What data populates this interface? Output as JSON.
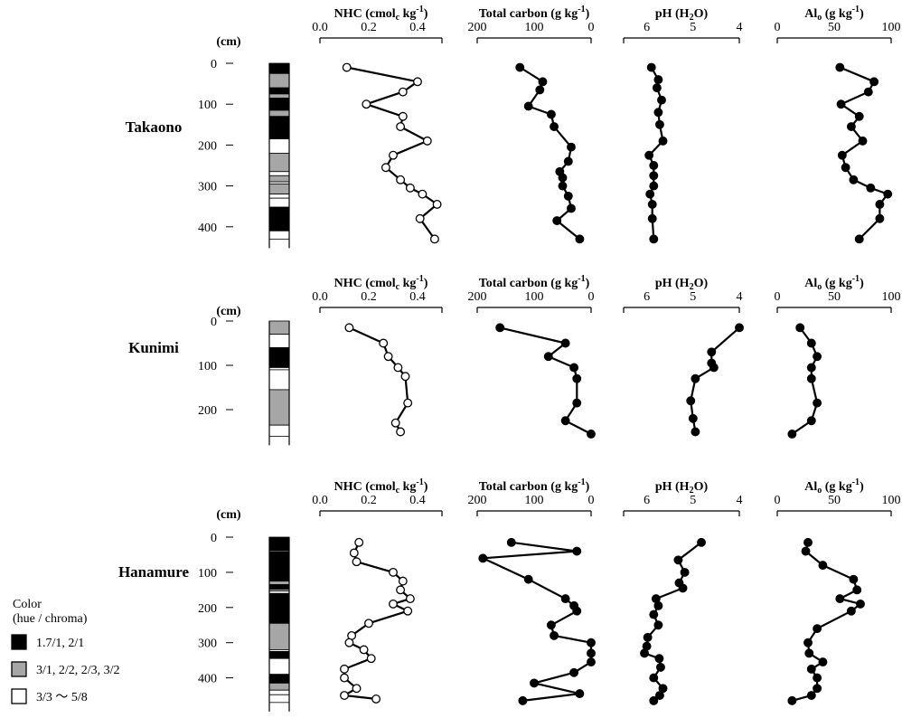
{
  "depth_unit": "(cm)",
  "panel_titles": {
    "nhc": {
      "main": "NHC (cmol",
      "sub": "c",
      "tail": " kg",
      "sup": "-1",
      "end": ")"
    },
    "tc": {
      "main": "Total carbon (g kg",
      "sup": "-1",
      "end": ")"
    },
    "ph": {
      "main": "pH (H",
      "sub": "2",
      "tail": "O)"
    },
    "alo": {
      "main": "Al",
      "sub": "o",
      "tail": " (g kg",
      "sup": "-1",
      "end": ")"
    }
  },
  "legend": {
    "title_line1": "Color",
    "title_line2": "(hue / chroma)",
    "items": [
      {
        "label": "1.7/1,  2/1",
        "color": "#000000"
      },
      {
        "label": "3/1,  2/2,  2/3,  3/2",
        "color": "#a6a6a6"
      },
      {
        "label": "3/3 ～ 5/8",
        "color": "#ffffff"
      }
    ]
  },
  "colors": {
    "dark": "#000000",
    "gray": "#a6a6a6",
    "light": "#ffffff"
  },
  "chart_data": [
    {
      "site": "Takaono",
      "type": "line",
      "y_ticks": [
        0,
        100,
        200,
        300,
        400
      ],
      "ylim": [
        0,
        430
      ],
      "color_column": [
        {
          "from": 0,
          "to": 25,
          "color": "dark"
        },
        {
          "from": 25,
          "to": 60,
          "color": "gray"
        },
        {
          "from": 60,
          "to": 75,
          "color": "dark"
        },
        {
          "from": 75,
          "to": 85,
          "color": "gray"
        },
        {
          "from": 85,
          "to": 115,
          "color": "dark"
        },
        {
          "from": 115,
          "to": 130,
          "color": "gray"
        },
        {
          "from": 130,
          "to": 185,
          "color": "dark"
        },
        {
          "from": 185,
          "to": 220,
          "color": "light"
        },
        {
          "from": 220,
          "to": 265,
          "color": "gray"
        },
        {
          "from": 265,
          "to": 275,
          "color": "light"
        },
        {
          "from": 275,
          "to": 290,
          "color": "gray"
        },
        {
          "from": 290,
          "to": 295,
          "color": "light"
        },
        {
          "from": 295,
          "to": 320,
          "color": "gray"
        },
        {
          "from": 320,
          "to": 330,
          "color": "light"
        },
        {
          "from": 330,
          "to": 352,
          "color": "light"
        },
        {
          "from": 352,
          "to": 410,
          "color": "dark"
        },
        {
          "from": 410,
          "to": 430,
          "color": "light"
        }
      ],
      "series": [
        {
          "key": "nhc",
          "xlim": [
            0,
            0.5
          ],
          "x_ticks": [
            0.0,
            0.2,
            0.4
          ],
          "tick_labels": [
            "0.0",
            "0.2",
            "0.4"
          ],
          "reversed": false,
          "marker": "open",
          "depth": [
            10,
            45,
            70,
            100,
            130,
            155,
            190,
            225,
            255,
            285,
            305,
            320,
            345,
            380,
            430
          ],
          "values": [
            0.11,
            0.4,
            0.34,
            0.19,
            0.34,
            0.33,
            0.44,
            0.3,
            0.27,
            0.33,
            0.37,
            0.42,
            0.48,
            0.41,
            0.47
          ]
        },
        {
          "key": "tc",
          "xlim": [
            200,
            0
          ],
          "x_ticks": [
            200,
            100,
            0
          ],
          "tick_labels": [
            "200",
            "100",
            "0"
          ],
          "reversed": true,
          "marker": "filled",
          "depth": [
            10,
            45,
            65,
            105,
            125,
            155,
            205,
            240,
            265,
            280,
            300,
            325,
            355,
            385,
            430
          ],
          "values": [
            125,
            85,
            90,
            110,
            70,
            65,
            35,
            40,
            55,
            50,
            50,
            40,
            35,
            60,
            20
          ]
        },
        {
          "key": "ph",
          "xlim": [
            6.5,
            4
          ],
          "x_ticks": [
            6,
            5,
            4
          ],
          "tick_labels": [
            "6",
            "5",
            "4"
          ],
          "reversed": true,
          "marker": "filled",
          "depth": [
            10,
            40,
            60,
            90,
            120,
            150,
            190,
            225,
            250,
            275,
            300,
            320,
            345,
            380,
            430
          ],
          "values": [
            5.9,
            5.75,
            5.78,
            5.68,
            5.75,
            5.72,
            5.65,
            5.95,
            5.85,
            5.85,
            5.85,
            5.93,
            5.88,
            5.88,
            5.85
          ]
        },
        {
          "key": "alo",
          "xlim": [
            0,
            100
          ],
          "x_ticks": [
            0,
            50,
            100
          ],
          "tick_labels": [
            "0",
            "50",
            "100"
          ],
          "reversed": false,
          "marker": "filled",
          "depth": [
            10,
            45,
            70,
            100,
            130,
            155,
            190,
            225,
            255,
            285,
            305,
            320,
            345,
            380,
            430
          ],
          "values": [
            55,
            85,
            80,
            56,
            72,
            65,
            75,
            57,
            60,
            67,
            82,
            97,
            90,
            90,
            72
          ]
        }
      ]
    },
    {
      "site": "Kunimi",
      "type": "line",
      "y_ticks": [
        0,
        100,
        200
      ],
      "ylim": [
        0,
        260
      ],
      "color_column": [
        {
          "from": 0,
          "to": 30,
          "color": "gray"
        },
        {
          "from": 30,
          "to": 60,
          "color": "light"
        },
        {
          "from": 60,
          "to": 105,
          "color": "dark"
        },
        {
          "from": 105,
          "to": 110,
          "color": "light"
        },
        {
          "from": 110,
          "to": 155,
          "color": "light"
        },
        {
          "from": 155,
          "to": 235,
          "color": "gray"
        },
        {
          "from": 235,
          "to": 260,
          "color": "light"
        }
      ],
      "series": [
        {
          "key": "nhc",
          "xlim": [
            0,
            0.5
          ],
          "x_ticks": [
            0.0,
            0.2,
            0.4
          ],
          "tick_labels": [
            "0.0",
            "0.2",
            "0.4"
          ],
          "reversed": false,
          "marker": "open",
          "depth": [
            15,
            50,
            80,
            105,
            125,
            185,
            230,
            250
          ],
          "values": [
            0.12,
            0.26,
            0.28,
            0.32,
            0.35,
            0.36,
            0.31,
            0.33
          ]
        },
        {
          "key": "tc",
          "xlim": [
            200,
            0
          ],
          "x_ticks": [
            200,
            100,
            0
          ],
          "tick_labels": [
            "200",
            "100",
            "0"
          ],
          "reversed": true,
          "marker": "filled",
          "depth": [
            15,
            50,
            80,
            105,
            130,
            185,
            225,
            255
          ],
          "values": [
            160,
            45,
            75,
            30,
            25,
            25,
            45,
            0
          ]
        },
        {
          "key": "ph",
          "xlim": [
            6.5,
            4
          ],
          "x_ticks": [
            6,
            5,
            4
          ],
          "tick_labels": [
            "6",
            "5",
            "4"
          ],
          "reversed": true,
          "marker": "filled",
          "depth": [
            15,
            70,
            95,
            105,
            130,
            180,
            220,
            250
          ],
          "values": [
            4.0,
            4.6,
            4.6,
            4.55,
            4.95,
            5.05,
            5.0,
            4.95
          ]
        },
        {
          "key": "alo",
          "xlim": [
            0,
            100
          ],
          "x_ticks": [
            0,
            50,
            100
          ],
          "tick_labels": [
            "0",
            "50",
            "100"
          ],
          "reversed": false,
          "marker": "filled",
          "depth": [
            15,
            50,
            80,
            105,
            130,
            185,
            225,
            255
          ],
          "values": [
            20,
            30,
            35,
            30,
            30,
            35,
            30,
            13
          ]
        }
      ]
    },
    {
      "site": "Hanamure",
      "type": "line",
      "y_ticks": [
        0,
        100,
        200,
        300,
        400
      ],
      "ylim": [
        0,
        470
      ],
      "color_column": [
        {
          "from": 0,
          "to": 38,
          "color": "dark"
        },
        {
          "from": 38,
          "to": 41,
          "color": "light"
        },
        {
          "from": 41,
          "to": 125,
          "color": "dark"
        },
        {
          "from": 125,
          "to": 135,
          "color": "gray"
        },
        {
          "from": 135,
          "to": 148,
          "color": "dark"
        },
        {
          "from": 148,
          "to": 153,
          "color": "gray"
        },
        {
          "from": 153,
          "to": 160,
          "color": "light"
        },
        {
          "from": 160,
          "to": 245,
          "color": "dark"
        },
        {
          "from": 245,
          "to": 320,
          "color": "gray"
        },
        {
          "from": 320,
          "to": 325,
          "color": "light"
        },
        {
          "from": 325,
          "to": 345,
          "color": "dark"
        },
        {
          "from": 345,
          "to": 390,
          "color": "light"
        },
        {
          "from": 390,
          "to": 415,
          "color": "dark"
        },
        {
          "from": 415,
          "to": 435,
          "color": "gray"
        },
        {
          "from": 435,
          "to": 448,
          "color": "light"
        },
        {
          "from": 448,
          "to": 470,
          "color": "light"
        }
      ],
      "series": [
        {
          "key": "nhc",
          "xlim": [
            0,
            0.5
          ],
          "x_ticks": [
            0.0,
            0.2,
            0.4
          ],
          "tick_labels": [
            "0.0",
            "0.2",
            "0.4"
          ],
          "reversed": false,
          "marker": "open",
          "depth": [
            15,
            45,
            70,
            100,
            125,
            150,
            175,
            190,
            210,
            245,
            280,
            300,
            320,
            345,
            375,
            400,
            430,
            450,
            460
          ],
          "values": [
            0.16,
            0.14,
            0.15,
            0.3,
            0.34,
            0.33,
            0.37,
            0.3,
            0.36,
            0.2,
            0.13,
            0.12,
            0.18,
            0.21,
            0.1,
            0.1,
            0.15,
            0.1,
            0.23
          ]
        },
        {
          "key": "tc",
          "xlim": [
            200,
            0
          ],
          "x_ticks": [
            200,
            100,
            0
          ],
          "tick_labels": [
            "200",
            "100",
            "0"
          ],
          "reversed": true,
          "marker": "filled",
          "depth": [
            15,
            40,
            60,
            120,
            175,
            195,
            210,
            250,
            280,
            300,
            330,
            355,
            385,
            415,
            445,
            465
          ],
          "values": [
            140,
            25,
            190,
            110,
            45,
            30,
            25,
            70,
            65,
            0,
            0,
            0,
            30,
            100,
            20,
            120
          ]
        },
        {
          "key": "ph",
          "xlim": [
            6.5,
            4
          ],
          "x_ticks": [
            6,
            5,
            4
          ],
          "tick_labels": [
            "6",
            "5",
            "4"
          ],
          "reversed": true,
          "marker": "filled",
          "depth": [
            15,
            65,
            100,
            130,
            145,
            175,
            195,
            220,
            250,
            285,
            310,
            330,
            345,
            370,
            400,
            430,
            450,
            465
          ],
          "values": [
            4.82,
            5.32,
            5.18,
            5.3,
            5.22,
            5.8,
            5.75,
            5.85,
            5.75,
            5.98,
            6.0,
            6.05,
            5.73,
            5.7,
            5.85,
            5.65,
            5.72,
            5.85
          ]
        },
        {
          "key": "alo",
          "xlim": [
            0,
            100
          ],
          "x_ticks": [
            0,
            50,
            100
          ],
          "tick_labels": [
            "0",
            "50",
            "100"
          ],
          "reversed": false,
          "marker": "filled",
          "depth": [
            15,
            40,
            80,
            120,
            150,
            175,
            190,
            210,
            260,
            300,
            330,
            355,
            375,
            400,
            430,
            450,
            465
          ],
          "values": [
            27,
            25,
            40,
            67,
            70,
            55,
            73,
            65,
            35,
            27,
            28,
            40,
            30,
            35,
            35,
            30,
            13
          ]
        }
      ]
    }
  ]
}
